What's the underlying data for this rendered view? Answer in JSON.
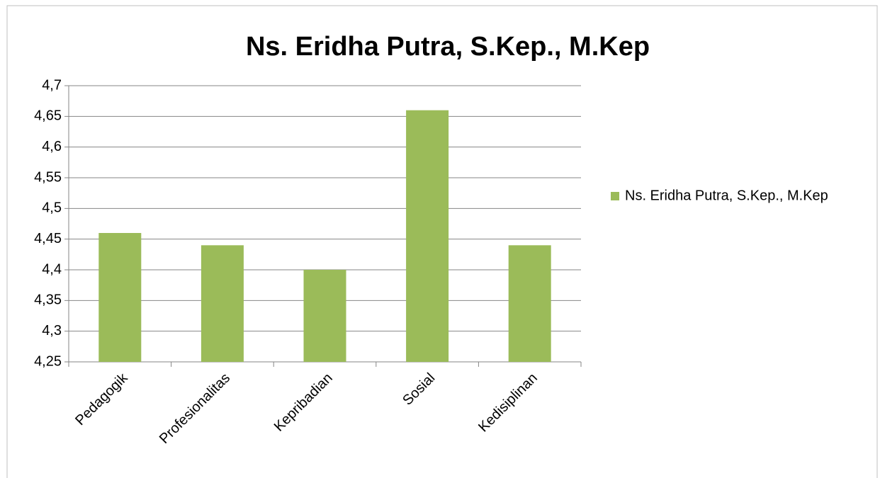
{
  "chart_data": {
    "type": "bar",
    "title": "Ns. Eridha Putra, S.Kep., M.Kep",
    "categories": [
      "Pedagogik",
      "Profesionalitas",
      "Kepribadian",
      "Sosial",
      "Kedisiplinan"
    ],
    "series": [
      {
        "name": "Ns. Eridha Putra, S.Kep., M.Kep",
        "color": "#9bbb59",
        "values": [
          4.46,
          4.44,
          4.4,
          4.66,
          4.44
        ]
      }
    ],
    "ylim": [
      4.25,
      4.7
    ],
    "yticks": [
      {
        "value": 4.25,
        "label": "4,25"
      },
      {
        "value": 4.3,
        "label": "4,3"
      },
      {
        "value": 4.35,
        "label": "4,35"
      },
      {
        "value": 4.4,
        "label": "4,4"
      },
      {
        "value": 4.45,
        "label": "4,45"
      },
      {
        "value": 4.5,
        "label": "4,5"
      },
      {
        "value": 4.55,
        "label": "4,55"
      },
      {
        "value": 4.6,
        "label": "4,6"
      },
      {
        "value": 4.65,
        "label": "4,65"
      },
      {
        "value": 4.7,
        "label": "4,7"
      }
    ],
    "grid": true,
    "legend": "right"
  }
}
